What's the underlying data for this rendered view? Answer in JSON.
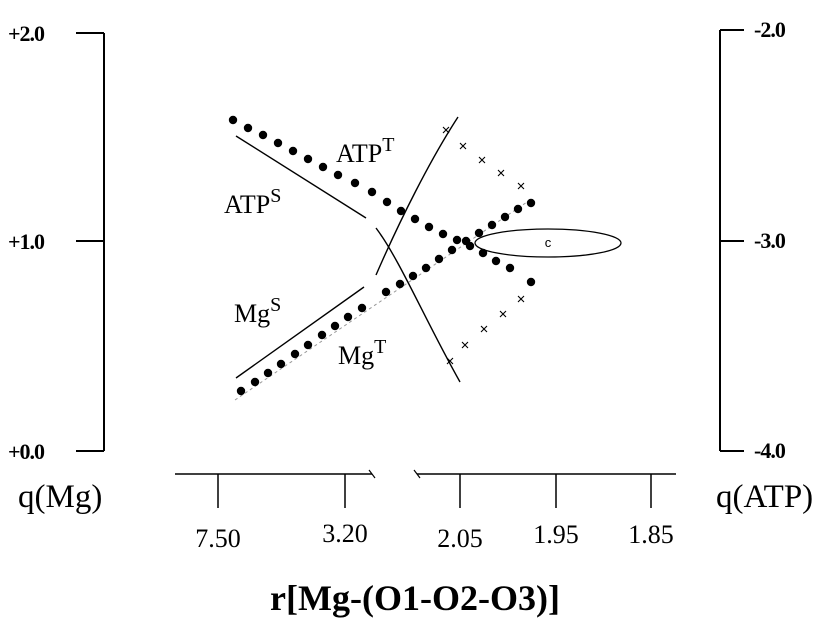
{
  "left_axis": {
    "label": "q(Mg)",
    "ticks": [
      "+2.0",
      "+1.0",
      "+0.0"
    ]
  },
  "right_axis": {
    "label": "q(ATP)",
    "ticks": [
      "-2.0",
      "-3.0",
      "-4.0"
    ]
  },
  "bottom_axis": {
    "title": "r[Mg-(O1-O2-O3)]",
    "ticks": [
      "7.50",
      "3.20",
      "2.05",
      "1.95",
      "1.85"
    ]
  },
  "curves": {
    "atp_t": {
      "base": "ATP",
      "sup": "T"
    },
    "atp_s": {
      "base": "ATP",
      "sup": "S"
    },
    "mg_s": {
      "base": "Mg",
      "sup": "S"
    },
    "mg_t": {
      "base": "Mg",
      "sup": "T"
    }
  },
  "ellipse_label": "c"
}
